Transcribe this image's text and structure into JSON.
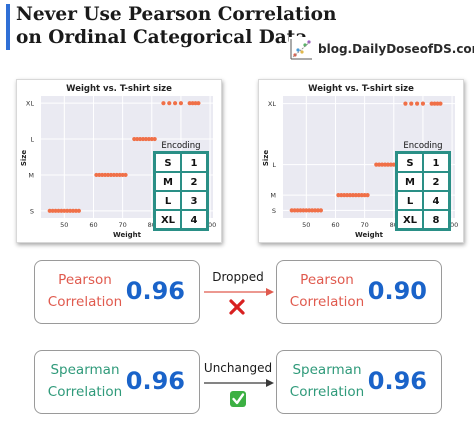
{
  "header": {
    "title_line1": "Never Use Pearson Correlation",
    "title_line2": "on Ordinal Categorical Data",
    "blog": "blog.DailyDoseofDS.com",
    "accent_color": "#2f6fd6"
  },
  "chart_data": [
    {
      "type": "scatter",
      "title": "Weight vs. T-shirt size",
      "xlabel": "Weight",
      "ylabel": "Size",
      "xlim": [
        42,
        101
      ],
      "x_ticks": [
        50,
        60,
        70,
        80,
        90,
        100
      ],
      "y_ticks": [
        "S",
        "M",
        "L",
        "XL"
      ],
      "y_tick_values": [
        1,
        2,
        3,
        4
      ],
      "ylim": [
        0.8,
        4.2
      ],
      "grid": true,
      "color": "#f07048",
      "points": {
        "S": [
          45,
          46,
          47,
          48,
          49,
          50,
          51,
          52,
          53,
          54,
          55
        ],
        "M": [
          61,
          62,
          63,
          64,
          65,
          66,
          67,
          68,
          69,
          70,
          71
        ],
        "L": [
          74,
          75,
          76,
          77,
          78,
          79,
          80,
          81
        ],
        "XL": [
          84,
          86,
          88,
          90,
          93,
          94,
          95,
          96
        ]
      },
      "encoding": {
        "title": "Encoding",
        "rows": [
          [
            "S",
            "1"
          ],
          [
            "M",
            "2"
          ],
          [
            "L",
            "3"
          ],
          [
            "XL",
            "4"
          ]
        ]
      }
    },
    {
      "type": "scatter",
      "title": "Weight vs. T-shirt size",
      "xlabel": "Weight",
      "ylabel": "Size",
      "xlim": [
        42,
        101
      ],
      "x_ticks": [
        50,
        60,
        70,
        80,
        90,
        100
      ],
      "y_ticks": [
        "S",
        "M",
        "L",
        "XL"
      ],
      "y_tick_values": [
        1,
        2,
        4,
        8
      ],
      "ylim": [
        0.5,
        8.5
      ],
      "grid": true,
      "color": "#f07048",
      "points": {
        "S": [
          45,
          46,
          47,
          48,
          49,
          50,
          51,
          52,
          53,
          54,
          55
        ],
        "M": [
          61,
          62,
          63,
          64,
          65,
          66,
          67,
          68,
          69,
          70,
          71
        ],
        "L": [
          74,
          75,
          76,
          77,
          78,
          79,
          80,
          81
        ],
        "XL": [
          84,
          86,
          88,
          90,
          93,
          94,
          95,
          96
        ]
      },
      "encoding": {
        "title": "Encoding",
        "rows": [
          [
            "S",
            "1"
          ],
          [
            "M",
            "2"
          ],
          [
            "L",
            "4"
          ],
          [
            "XL",
            "8"
          ]
        ]
      }
    }
  ],
  "comparison": {
    "pearson": {
      "label_line1": "Pearson",
      "label_line2": "Correlation",
      "value_before": "0.96",
      "value_after": "0.90",
      "connector_label": "Dropped",
      "connector_icon": "red-cross-icon"
    },
    "spearman": {
      "label_line1": "Spearman",
      "label_line2": "Correlation",
      "value_before": "0.96",
      "value_after": "0.96",
      "connector_label": "Unchanged",
      "connector_icon": "green-check-icon"
    },
    "colors": {
      "pearson_text": "#e05a4e",
      "spearman_text": "#2f9a7a",
      "value_text": "#1a63c9",
      "arrow_pearson": "#e05a4e",
      "arrow_spearman": "#3a3a3a"
    }
  }
}
